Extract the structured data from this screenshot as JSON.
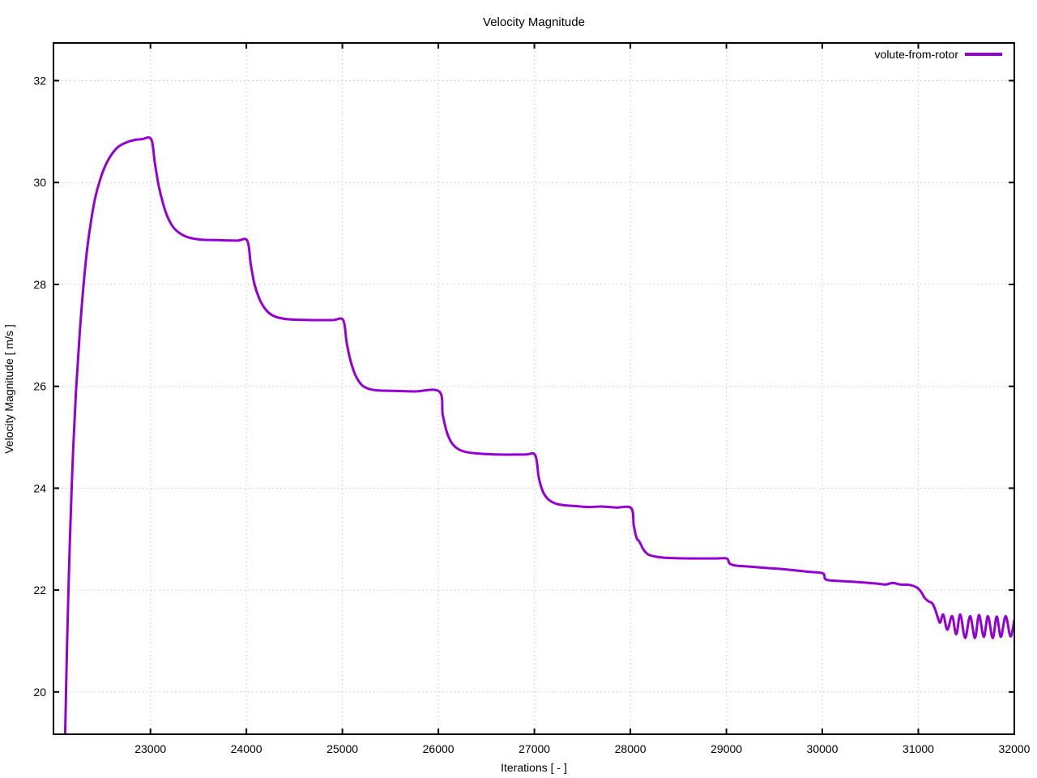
{
  "title": "Velocity Magnitude",
  "axes": {
    "xlabel": "Iterations [ - ]",
    "ylabel": "Velocity Magnitude [ m/s ]"
  },
  "legend": {
    "label": "volute-from-rotor"
  },
  "colors": {
    "series": "#9400d3",
    "grid": "#c8c8c8",
    "axis": "#000000",
    "background": "#ffffff",
    "text": "#000000"
  },
  "chart_data": {
    "type": "line",
    "title": "Velocity Magnitude",
    "xlabel": "Iterations [ - ]",
    "ylabel": "Velocity Magnitude [ m/s ]",
    "xlim": [
      21990,
      32000
    ],
    "ylim": [
      19.17,
      32.74
    ],
    "xticks": [
      23000,
      24000,
      25000,
      26000,
      27000,
      28000,
      29000,
      30000,
      31000,
      32000
    ],
    "yticks": [
      20,
      22,
      24,
      26,
      28,
      30,
      32
    ],
    "grid": true,
    "legend_position": "top-right",
    "series": [
      {
        "name": "volute-from-rotor",
        "color": "#9400d3",
        "points": [
          [
            22112,
            19.17
          ],
          [
            22122,
            20.1
          ],
          [
            22135,
            21.2
          ],
          [
            22152,
            22.4
          ],
          [
            22172,
            23.6
          ],
          [
            22196,
            24.8
          ],
          [
            22225,
            25.9
          ],
          [
            22258,
            26.9
          ],
          [
            22295,
            27.8
          ],
          [
            22335,
            28.6
          ],
          [
            22378,
            29.2
          ],
          [
            22425,
            29.7
          ],
          [
            22475,
            30.05
          ],
          [
            22530,
            30.33
          ],
          [
            22595,
            30.55
          ],
          [
            22665,
            30.7
          ],
          [
            22740,
            30.78
          ],
          [
            22820,
            30.83
          ],
          [
            22910,
            30.85
          ],
          [
            23008,
            30.85
          ],
          [
            23045,
            30.4
          ],
          [
            23085,
            29.95
          ],
          [
            23130,
            29.6
          ],
          [
            23180,
            29.32
          ],
          [
            23240,
            29.12
          ],
          [
            23310,
            29.0
          ],
          [
            23400,
            28.92
          ],
          [
            23520,
            28.88
          ],
          [
            23700,
            28.87
          ],
          [
            23900,
            28.86
          ],
          [
            24008,
            28.86
          ],
          [
            24045,
            28.4
          ],
          [
            24085,
            28.0
          ],
          [
            24135,
            27.72
          ],
          [
            24195,
            27.52
          ],
          [
            24265,
            27.4
          ],
          [
            24350,
            27.34
          ],
          [
            24470,
            27.31
          ],
          [
            24700,
            27.3
          ],
          [
            24900,
            27.3
          ],
          [
            25008,
            27.3
          ],
          [
            25045,
            26.85
          ],
          [
            25085,
            26.5
          ],
          [
            25135,
            26.22
          ],
          [
            25200,
            26.03
          ],
          [
            25275,
            25.95
          ],
          [
            25370,
            25.92
          ],
          [
            25520,
            25.91
          ],
          [
            25750,
            25.9
          ],
          [
            26008,
            25.9
          ],
          [
            26045,
            25.45
          ],
          [
            26085,
            25.12
          ],
          [
            26135,
            24.9
          ],
          [
            26205,
            24.77
          ],
          [
            26290,
            24.71
          ],
          [
            26420,
            24.68
          ],
          [
            26650,
            24.66
          ],
          [
            26900,
            24.66
          ],
          [
            27008,
            24.65
          ],
          [
            27045,
            24.22
          ],
          [
            27085,
            23.95
          ],
          [
            27135,
            23.8
          ],
          [
            27205,
            23.71
          ],
          [
            27290,
            23.67
          ],
          [
            27420,
            23.65
          ],
          [
            27560,
            23.63
          ],
          [
            27700,
            23.64
          ],
          [
            27850,
            23.62
          ],
          [
            28008,
            23.61
          ],
          [
            28035,
            23.28
          ],
          [
            28065,
            23.02
          ],
          [
            28095,
            22.95
          ],
          [
            28135,
            22.8
          ],
          [
            28185,
            22.7
          ],
          [
            28255,
            22.66
          ],
          [
            28400,
            22.63
          ],
          [
            28650,
            22.62
          ],
          [
            28900,
            22.62
          ],
          [
            29005,
            22.62
          ],
          [
            29035,
            22.52
          ],
          [
            29100,
            22.48
          ],
          [
            29250,
            22.46
          ],
          [
            29450,
            22.43
          ],
          [
            29650,
            22.4
          ],
          [
            29850,
            22.36
          ],
          [
            30005,
            22.33
          ],
          [
            30035,
            22.21
          ],
          [
            30150,
            22.18
          ],
          [
            30350,
            22.16
          ],
          [
            30550,
            22.13
          ],
          [
            30660,
            22.11
          ],
          [
            30730,
            22.14
          ],
          [
            30810,
            22.11
          ],
          [
            30910,
            22.1
          ],
          [
            30985,
            22.05
          ],
          [
            31030,
            21.96
          ],
          [
            31065,
            21.85
          ],
          [
            31105,
            21.78
          ],
          [
            31145,
            21.74
          ],
          [
            31175,
            21.62
          ],
          [
            31205,
            21.45
          ],
          [
            31228,
            21.36
          ],
          [
            31260,
            21.52
          ],
          [
            31302,
            21.22
          ],
          [
            31352,
            21.49
          ],
          [
            31395,
            21.13
          ],
          [
            31437,
            21.52
          ],
          [
            31488,
            21.06
          ],
          [
            31539,
            21.49
          ],
          [
            31590,
            21.06
          ],
          [
            31632,
            21.51
          ],
          [
            31682,
            21.08
          ],
          [
            31725,
            21.49
          ],
          [
            31775,
            21.06
          ],
          [
            31817,
            21.48
          ],
          [
            31860,
            21.08
          ],
          [
            31910,
            21.49
          ],
          [
            31960,
            21.09
          ],
          [
            32000,
            21.41
          ]
        ]
      }
    ]
  }
}
